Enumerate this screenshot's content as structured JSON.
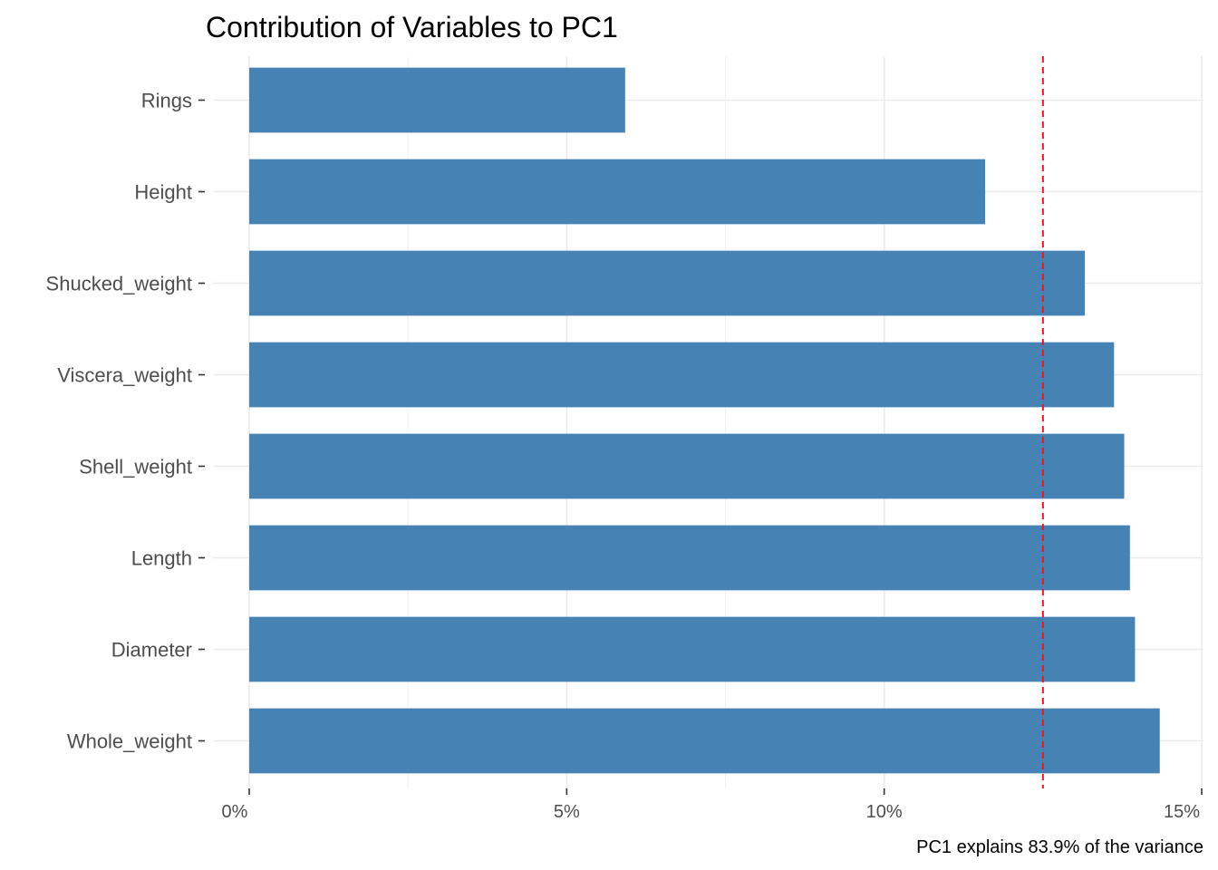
{
  "chart_data": {
    "type": "bar",
    "orientation": "horizontal",
    "title": "Contribution of Variables to PC1",
    "categories": [
      "Whole_weight",
      "Diameter",
      "Length",
      "Shell_weight",
      "Viscera_weight",
      "Shucked_weight",
      "Height",
      "Rings"
    ],
    "values": [
      14.34,
      13.95,
      13.87,
      13.78,
      13.62,
      13.16,
      11.59,
      5.92
    ],
    "value_unit": "%",
    "xlim": [
      0,
      15
    ],
    "x_ticks": [
      0,
      5,
      10,
      15
    ],
    "x_tick_labels": [
      "0%",
      "5%",
      "10%",
      "15%"
    ],
    "reference_line": {
      "value": 12.5,
      "style": "dashed",
      "color": "#e41a1c"
    },
    "caption": "PC1 explains 83.9% of the variance",
    "bar_color": "#4682b4",
    "grid": true
  }
}
